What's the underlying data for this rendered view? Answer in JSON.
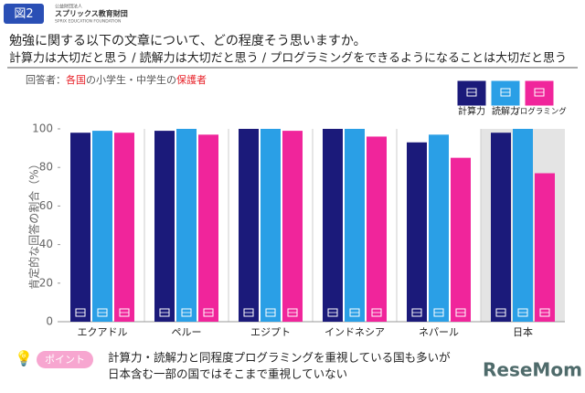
{
  "header": {
    "badge": "図2",
    "org_type": "公益財団法人",
    "org_name": "スプリックス教育財団",
    "org_en": "SPRIX EDUCATION FOUNDATION"
  },
  "question": "勉強に関する以下の文章について、どの程度そう思いますか。",
  "respondent": [
    "回答者：",
    "各国",
    "の小学生・中学生の",
    "保護者"
  ],
  "chart_data": {
    "type": "bar",
    "subtitle": "計算力は大切だと思う / 読解力は大切だと思う / プログラミングをできるようになることは大切だと思う",
    "ylabel": "肯定的な回答の割合（%）",
    "categories": [
      "エクアドル",
      "ペルー",
      "エジプト",
      "インドネシア",
      "ネパール",
      "日本"
    ],
    "series": [
      {
        "name": "計算力",
        "color": "#1b1a7a",
        "values": [
          98,
          99,
          100,
          100,
          93,
          98
        ]
      },
      {
        "name": "読解力",
        "color": "#2a9fe6",
        "values": [
          99,
          100,
          100,
          100,
          97,
          100
        ]
      },
      {
        "name": "プログラミング",
        "color": "#f0259b",
        "values": [
          98,
          97,
          99,
          96,
          85,
          77
        ]
      }
    ],
    "ylim": [
      0,
      100
    ],
    "yticks": [
      0,
      20,
      40,
      60,
      80,
      100
    ],
    "legend": "top-right"
  },
  "point": {
    "tag": "ポイント",
    "lines": [
      "計算力・読解力と同程度プログラミングを重視している国も多いが",
      "日本含む一部の国ではそこまで重視していない"
    ]
  },
  "watermark": "ReseMom"
}
